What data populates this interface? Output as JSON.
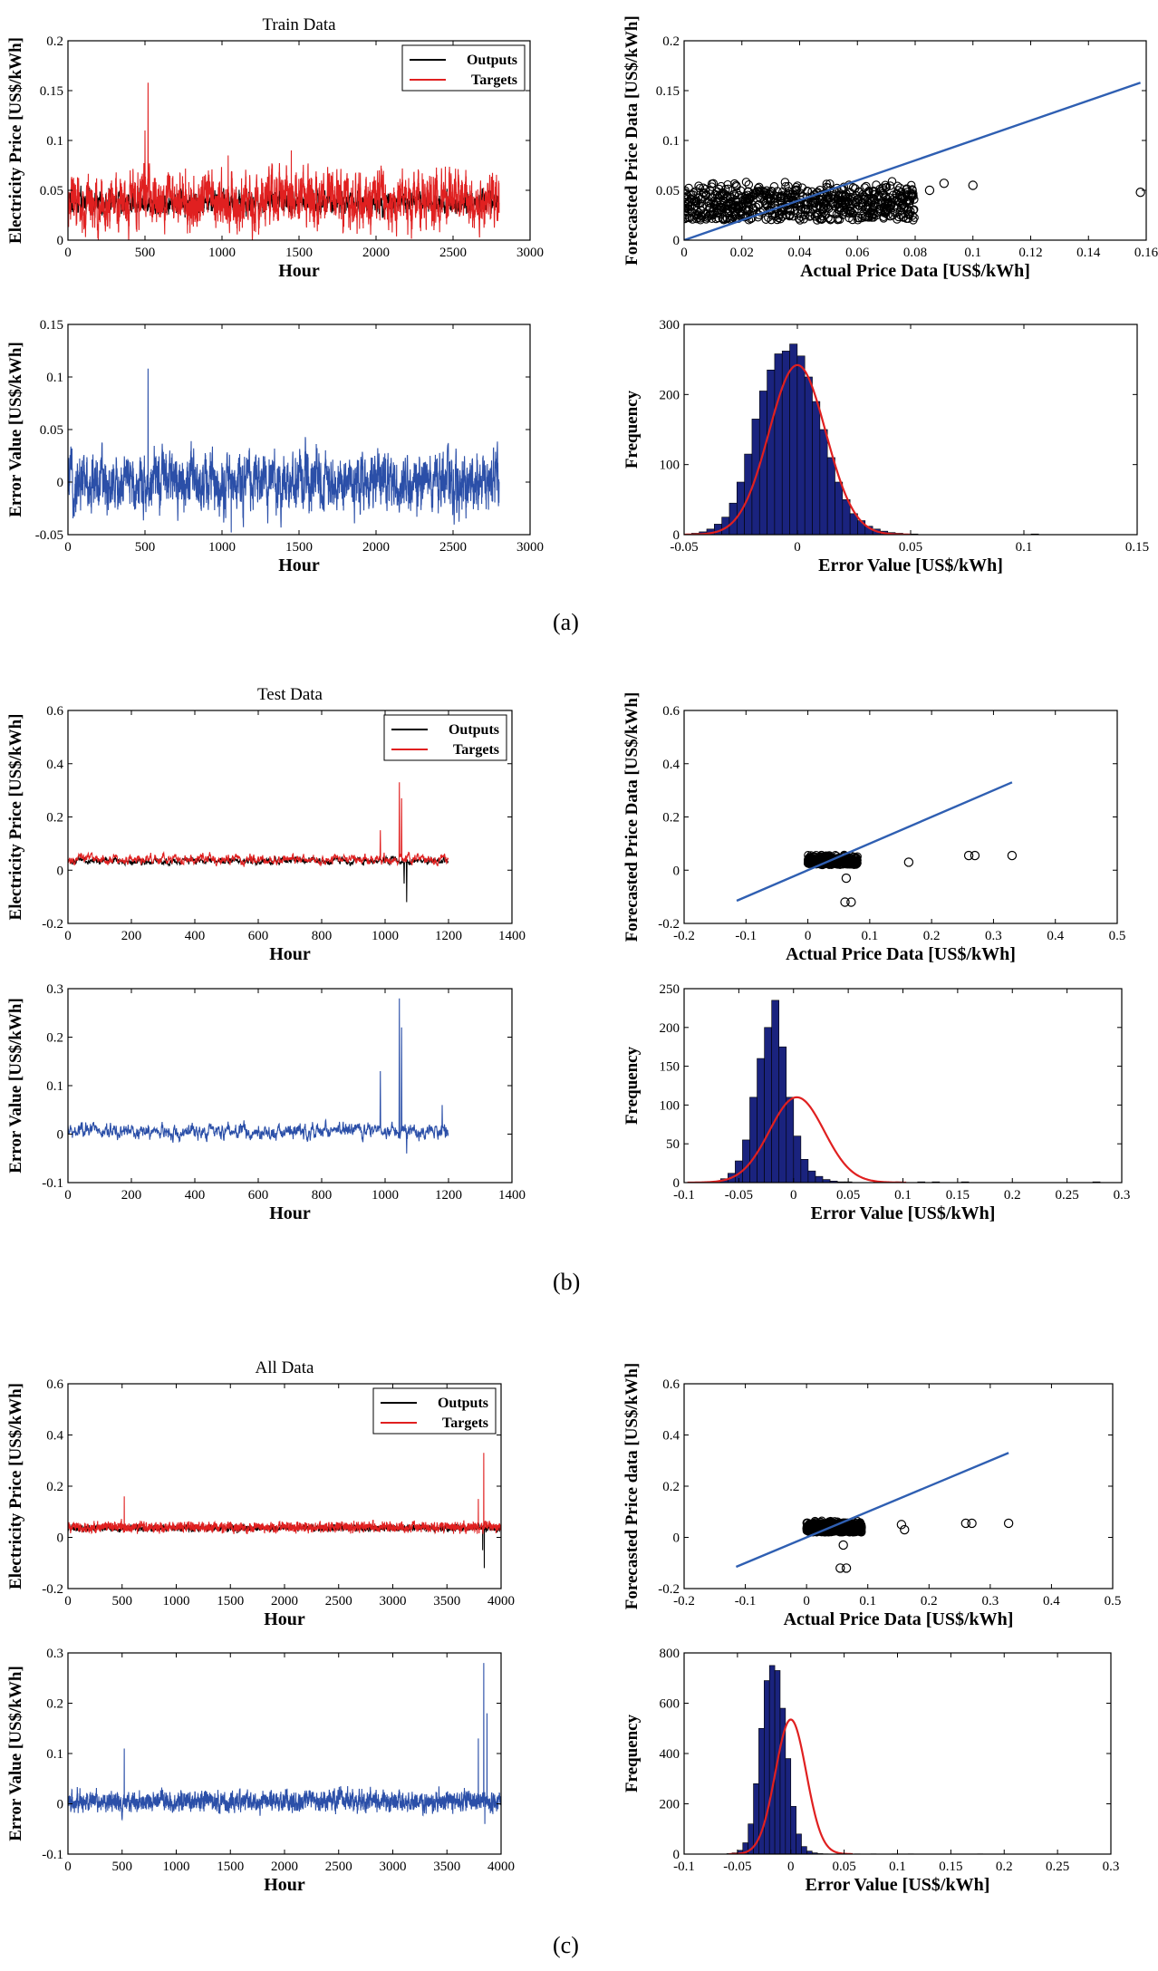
{
  "panel_labels": [
    "(a)",
    "(b)",
    "(c)"
  ],
  "colors": {
    "outputs": "#000000",
    "targets": "#e02020",
    "error": "#2b4fa8",
    "fit_line": "#2f5fb2",
    "hist_bar": "#1a237e",
    "normal_curve": "#e02020",
    "scatter": "#000000"
  },
  "chart_data": [
    {
      "id": "a-price",
      "type": "line",
      "title": "Train Data",
      "xlabel": "Hour",
      "ylabel": "Electricity Price [US$/kWh]",
      "xlim": [
        0,
        3000
      ],
      "ylim": [
        0,
        0.2
      ],
      "xticks": [
        0,
        500,
        1000,
        1500,
        2000,
        2500,
        3000
      ],
      "yticks": [
        0,
        0.05,
        0.1,
        0.15,
        0.2
      ],
      "xtick_labels": [
        "0",
        "500",
        "1000",
        "1500",
        "2000",
        "2500",
        "3000"
      ],
      "ytick_labels": [
        "0",
        "0.05",
        "0.1",
        "0.15",
        "0.2"
      ],
      "legend": {
        "position": "top-right",
        "entries": [
          "Outputs",
          "Targets"
        ]
      },
      "series": [
        {
          "name": "Outputs",
          "n": 2800,
          "base": 0.038,
          "noise": 0.008,
          "spikes": []
        },
        {
          "name": "Targets",
          "n": 2800,
          "base": 0.04,
          "noise": 0.02,
          "spikes": [
            [
              520,
              0.158
            ],
            [
              1040,
              0.085
            ],
            [
              1450,
              0.09
            ],
            [
              500,
              0.11
            ]
          ]
        }
      ]
    },
    {
      "id": "a-scatter",
      "type": "scatter",
      "xlabel": "Actual Price Data [US$/kWh]",
      "ylabel": "Forecasted Price Data [US$/kWh]",
      "xlim": [
        0,
        0.16
      ],
      "ylim": [
        0,
        0.2
      ],
      "xticks": [
        0,
        0.02,
        0.04,
        0.06,
        0.08,
        0.1,
        0.12,
        0.14,
        0.16
      ],
      "yticks": [
        0,
        0.05,
        0.1,
        0.15,
        0.2
      ],
      "xtick_labels": [
        "0",
        "0.02",
        "0.04",
        "0.06",
        "0.08",
        "0.1",
        "0.12",
        "0.14",
        "0.16"
      ],
      "ytick_labels": [
        "0",
        "0.05",
        "0.1",
        "0.15",
        "0.2"
      ],
      "fit_line": [
        [
          0,
          0
        ],
        [
          0.158,
          0.158
        ]
      ],
      "cloud": {
        "n": 700,
        "xmin": 0,
        "xmax": 0.08,
        "ymin": 0.02,
        "ymax": 0.06
      },
      "outliers": [
        [
          0.1,
          0.055
        ],
        [
          0.158,
          0.048
        ],
        [
          0.085,
          0.05
        ],
        [
          0.09,
          0.057
        ]
      ]
    },
    {
      "id": "a-error",
      "type": "line",
      "xlabel": "Hour",
      "ylabel": "Error Value [US$/kWh]",
      "xlim": [
        0,
        3000
      ],
      "ylim": [
        -0.05,
        0.15
      ],
      "xticks": [
        0,
        500,
        1000,
        1500,
        2000,
        2500,
        3000
      ],
      "yticks": [
        -0.05,
        0,
        0.05,
        0.1,
        0.15
      ],
      "xtick_labels": [
        "0",
        "500",
        "1000",
        "1500",
        "2000",
        "2500",
        "3000"
      ],
      "ytick_labels": [
        "-0.05",
        "0",
        "0.05",
        "0.1",
        "0.15"
      ],
      "series": [
        {
          "name": "Error",
          "n": 2800,
          "base": 0.0,
          "noise": 0.02,
          "spikes": [
            [
              520,
              0.108
            ],
            [
              1060,
              -0.048
            ]
          ]
        }
      ]
    },
    {
      "id": "a-hist",
      "type": "bar",
      "xlabel": "Error Value [US$/kWh]",
      "ylabel": "Frequency",
      "xlim": [
        -0.05,
        0.15
      ],
      "ylim": [
        0,
        300
      ],
      "xticks": [
        -0.05,
        0,
        0.05,
        0.1,
        0.15
      ],
      "yticks": [
        0,
        100,
        200,
        300
      ],
      "xtick_labels": [
        "-0.05",
        "0",
        "0.05",
        "0.1",
        "0.15"
      ],
      "ytick_labels": [
        "0",
        "100",
        "200",
        "300"
      ],
      "bin_start": -0.05,
      "bin_width": 0.00333,
      "counts": [
        0,
        2,
        4,
        8,
        15,
        25,
        45,
        75,
        115,
        165,
        205,
        235,
        258,
        262,
        272,
        255,
        225,
        190,
        150,
        110,
        75,
        50,
        30,
        20,
        12,
        8,
        5,
        3,
        2,
        1,
        1,
        0,
        0,
        0,
        0,
        0,
        0,
        0,
        0,
        0,
        0,
        0,
        0,
        0,
        0,
        0,
        1,
        0,
        0,
        0,
        0,
        0,
        0,
        0,
        0,
        0,
        0,
        0,
        0,
        0
      ],
      "normal": {
        "mean": 0.0,
        "sd": 0.0125,
        "peak": 242
      }
    },
    {
      "id": "b-price",
      "type": "line",
      "title": "Test Data",
      "xlabel": "Hour",
      "ylabel": "Electricity Price [US$/kWh]",
      "xlim": [
        0,
        1400
      ],
      "ylim": [
        -0.2,
        0.6
      ],
      "xticks": [
        0,
        200,
        400,
        600,
        800,
        1000,
        1200,
        1400
      ],
      "yticks": [
        -0.2,
        0,
        0.2,
        0.4,
        0.6
      ],
      "xtick_labels": [
        "0",
        "200",
        "400",
        "600",
        "800",
        "1000",
        "1200",
        "1400"
      ],
      "ytick_labels": [
        "-0.2",
        "0",
        "0.2",
        "0.4",
        "0.6"
      ],
      "legend": {
        "position": "top-right",
        "entries": [
          "Outputs",
          "Targets"
        ]
      },
      "series": [
        {
          "name": "Outputs",
          "n": 1200,
          "base": 0.035,
          "noise": 0.01,
          "spikes": [
            [
              1068,
              -0.12
            ],
            [
              1060,
              -0.05
            ]
          ]
        },
        {
          "name": "Targets",
          "n": 1200,
          "base": 0.04,
          "noise": 0.014,
          "spikes": [
            [
              1045,
              0.33
            ],
            [
              1052,
              0.27
            ],
            [
              985,
              0.15
            ]
          ]
        }
      ]
    },
    {
      "id": "b-scatter",
      "type": "scatter",
      "xlabel": "Actual Price Data [US$/kWh]",
      "ylabel": "Forecasted Price Data [US$/kWh]",
      "xlim": [
        -0.2,
        0.5
      ],
      "ylim": [
        -0.2,
        0.6
      ],
      "xticks": [
        -0.2,
        -0.1,
        0,
        0.1,
        0.2,
        0.3,
        0.4,
        0.5
      ],
      "yticks": [
        -0.2,
        0,
        0.2,
        0.4,
        0.6
      ],
      "xtick_labels": [
        "-0.2",
        "-0.1",
        "0",
        "0.1",
        "0.2",
        "0.3",
        "0.4",
        "0.5"
      ],
      "ytick_labels": [
        "-0.2",
        "0",
        "0.2",
        "0.4",
        "0.6"
      ],
      "fit_line": [
        [
          -0.115,
          -0.115
        ],
        [
          0.33,
          0.33
        ]
      ],
      "cloud": {
        "n": 300,
        "xmin": 0,
        "xmax": 0.08,
        "ymin": 0.02,
        "ymax": 0.06
      },
      "outliers": [
        [
          0.06,
          -0.12
        ],
        [
          0.07,
          -0.12
        ],
        [
          0.062,
          -0.03
        ],
        [
          0.163,
          0.03
        ],
        [
          0.26,
          0.055
        ],
        [
          0.27,
          0.055
        ],
        [
          0.33,
          0.055
        ]
      ]
    },
    {
      "id": "b-error",
      "type": "line",
      "xlabel": "Hour",
      "ylabel": "Error Value [US$/kWh]",
      "xlim": [
        0,
        1400
      ],
      "ylim": [
        -0.1,
        0.3
      ],
      "xticks": [
        0,
        200,
        400,
        600,
        800,
        1000,
        1200,
        1400
      ],
      "yticks": [
        -0.1,
        0,
        0.1,
        0.2,
        0.3
      ],
      "xtick_labels": [
        "0",
        "200",
        "400",
        "600",
        "800",
        "1000",
        "1200",
        "1400"
      ],
      "ytick_labels": [
        "-0.1",
        "0",
        "0.1",
        "0.2",
        "0.3"
      ],
      "series": [
        {
          "name": "Error",
          "n": 1200,
          "base": 0.005,
          "noise": 0.012,
          "spikes": [
            [
              1045,
              0.28
            ],
            [
              1052,
              0.22
            ],
            [
              985,
              0.13
            ],
            [
              1068,
              -0.04
            ],
            [
              1180,
              0.06
            ]
          ]
        }
      ]
    },
    {
      "id": "b-hist",
      "type": "bar",
      "xlabel": "Error Value [US$/kWh]",
      "ylabel": "Frequency",
      "xlim": [
        -0.1,
        0.3
      ],
      "ylim": [
        0,
        250
      ],
      "xticks": [
        -0.1,
        -0.05,
        0,
        0.05,
        0.1,
        0.15,
        0.2,
        0.25,
        0.3
      ],
      "yticks": [
        0,
        50,
        100,
        150,
        200,
        250
      ],
      "xtick_labels": [
        "-0.1",
        "-0.05",
        "0",
        "0.05",
        "0.1",
        "0.15",
        "0.2",
        "0.25",
        "0.3"
      ],
      "ytick_labels": [
        "0",
        "50",
        "100",
        "150",
        "200",
        "250"
      ],
      "bin_start": -0.1,
      "bin_width": 0.00667,
      "counts": [
        0,
        0,
        0,
        1,
        2,
        5,
        12,
        28,
        55,
        110,
        160,
        200,
        235,
        175,
        110,
        60,
        30,
        15,
        8,
        4,
        2,
        1,
        1,
        0,
        0,
        0,
        1,
        0,
        0,
        1,
        0,
        0,
        1,
        0,
        1,
        0,
        0,
        0,
        1,
        0,
        0,
        0,
        0,
        0,
        0,
        0,
        0,
        0,
        0,
        0,
        0,
        0,
        0,
        0,
        0,
        0,
        1,
        0,
        0,
        0
      ],
      "normal": {
        "mean": 0.003,
        "sd": 0.025,
        "peak": 110
      }
    },
    {
      "id": "c-price",
      "type": "line",
      "title": "All Data",
      "xlabel": "Hour",
      "ylabel": "Electricity Price [US$/kWh]",
      "xlim": [
        0,
        4000
      ],
      "ylim": [
        -0.2,
        0.6
      ],
      "xticks": [
        0,
        500,
        1000,
        1500,
        2000,
        2500,
        3000,
        3500,
        4000
      ],
      "yticks": [
        -0.2,
        0,
        0.2,
        0.4,
        0.6
      ],
      "xtick_labels": [
        "0",
        "500",
        "1000",
        "1500",
        "2000",
        "2500",
        "3000",
        "3500",
        "4000"
      ],
      "ytick_labels": [
        "-0.2",
        "0",
        "0.2",
        "0.4",
        "0.6"
      ],
      "legend": {
        "position": "top-right",
        "entries": [
          "Outputs",
          "Targets"
        ]
      },
      "series": [
        {
          "name": "Outputs",
          "n": 4000,
          "base": 0.036,
          "noise": 0.009,
          "spikes": [
            [
              3845,
              -0.12
            ],
            [
              3830,
              -0.05
            ]
          ]
        },
        {
          "name": "Targets",
          "n": 4000,
          "base": 0.04,
          "noise": 0.014,
          "spikes": [
            [
              3840,
              0.33
            ],
            [
              3790,
              0.15
            ],
            [
              520,
              0.16
            ]
          ]
        }
      ]
    },
    {
      "id": "c-scatter",
      "type": "scatter",
      "xlabel": "Actual Price Data  [US$/kWh]",
      "ylabel": "Forecasted Price data  [US$/kWh]",
      "xlim": [
        -0.2,
        0.5
      ],
      "ylim": [
        -0.2,
        0.6
      ],
      "xticks": [
        -0.2,
        -0.1,
        0,
        0.1,
        0.2,
        0.3,
        0.4,
        0.5
      ],
      "yticks": [
        -0.2,
        0,
        0.2,
        0.4,
        0.6
      ],
      "xtick_labels": [
        "-0.2",
        "-0.1",
        "0",
        "0.1",
        "0.2",
        "0.3",
        "0.4",
        "0.5"
      ],
      "ytick_labels": [
        "-0.2",
        "0",
        "0.2",
        "0.4",
        "0.6"
      ],
      "fit_line": [
        [
          -0.115,
          -0.115
        ],
        [
          0.33,
          0.33
        ]
      ],
      "cloud": {
        "n": 700,
        "xmin": 0,
        "xmax": 0.09,
        "ymin": 0.02,
        "ymax": 0.065
      },
      "outliers": [
        [
          0.055,
          -0.12
        ],
        [
          0.065,
          -0.12
        ],
        [
          0.06,
          -0.03
        ],
        [
          0.155,
          0.05
        ],
        [
          0.16,
          0.03
        ],
        [
          0.26,
          0.055
        ],
        [
          0.27,
          0.055
        ],
        [
          0.33,
          0.055
        ]
      ]
    },
    {
      "id": "c-error",
      "type": "line",
      "xlabel": "Hour",
      "ylabel": "Error Value  [US$/kWh]",
      "xlim": [
        0,
        4000
      ],
      "ylim": [
        -0.1,
        0.3
      ],
      "xticks": [
        0,
        500,
        1000,
        1500,
        2000,
        2500,
        3000,
        3500,
        4000
      ],
      "yticks": [
        -0.1,
        0,
        0.1,
        0.2,
        0.3
      ],
      "xtick_labels": [
        "0",
        "500",
        "1000",
        "1500",
        "2000",
        "2500",
        "3000",
        "3500",
        "4000"
      ],
      "ytick_labels": [
        "-0.1",
        "0",
        "0.1",
        "0.2",
        "0.3"
      ],
      "series": [
        {
          "name": "Error",
          "n": 4000,
          "base": 0.005,
          "noise": 0.014,
          "spikes": [
            [
              520,
              0.11
            ],
            [
              3840,
              0.28
            ],
            [
              3870,
              0.18
            ],
            [
              3790,
              0.13
            ],
            [
              3850,
              -0.04
            ]
          ]
        }
      ]
    },
    {
      "id": "c-hist",
      "type": "bar",
      "xlabel": "Error Value  [US$/kWh]",
      "ylabel": "Frequency",
      "xlim": [
        -0.1,
        0.3
      ],
      "ylim": [
        0,
        800
      ],
      "xticks": [
        -0.1,
        -0.05,
        0,
        0.05,
        0.1,
        0.15,
        0.2,
        0.25,
        0.3
      ],
      "yticks": [
        0,
        200,
        400,
        600,
        800
      ],
      "xtick_labels": [
        "-0.1",
        "-0.05",
        "0",
        "0.05",
        "0.1",
        "0.15",
        "0.2",
        "0.25",
        "0.3"
      ],
      "ytick_labels": [
        "0",
        "200",
        "400",
        "600",
        "800"
      ],
      "bin_start": -0.1,
      "bin_width": 0.005,
      "counts": [
        0,
        0,
        0,
        0,
        0,
        0,
        0,
        0,
        2,
        5,
        15,
        45,
        120,
        280,
        500,
        690,
        750,
        730,
        580,
        380,
        190,
        80,
        30,
        12,
        5,
        2,
        1,
        0,
        0,
        0,
        1,
        0,
        1,
        0,
        0,
        1,
        0,
        0,
        0,
        1,
        0,
        0,
        1,
        0,
        0,
        0,
        0,
        0,
        0,
        0,
        0,
        0,
        0,
        0,
        0,
        1,
        0,
        0,
        0,
        0
      ],
      "normal": {
        "mean": 0.0,
        "sd": 0.0145,
        "peak": 535
      }
    }
  ]
}
